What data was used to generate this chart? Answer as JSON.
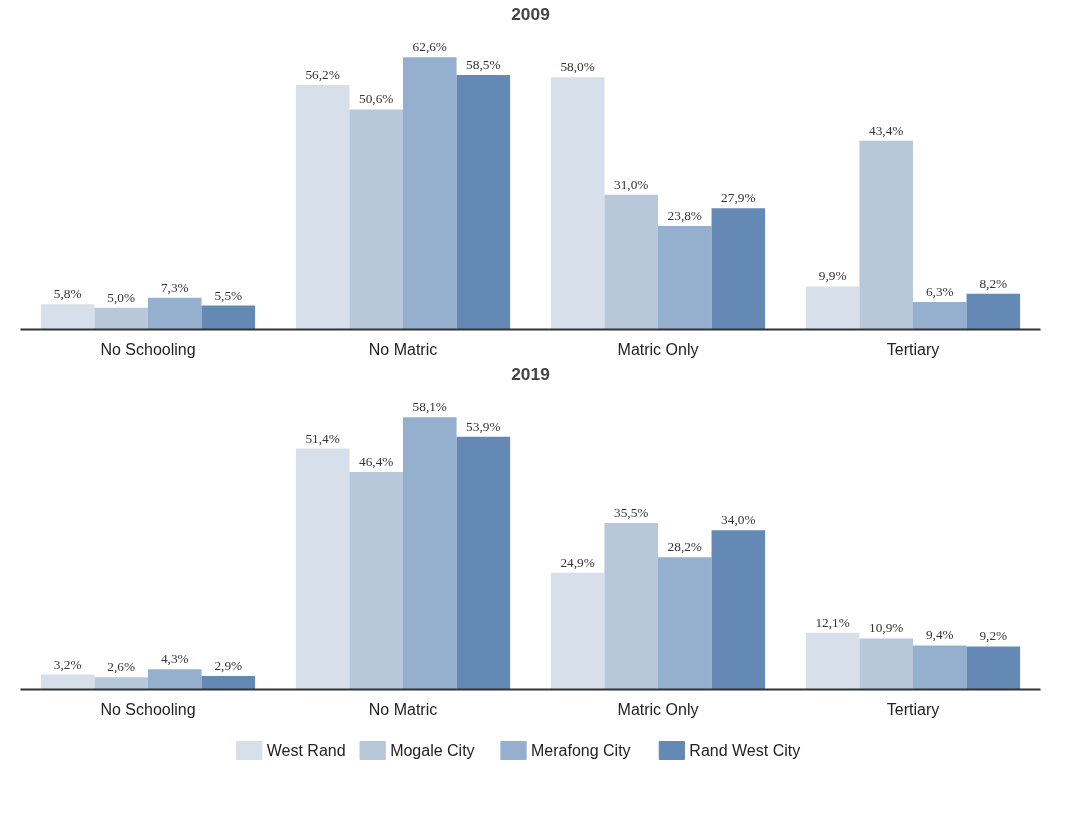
{
  "chart_data": [
    {
      "type": "bar",
      "title": "2009",
      "categories": [
        "No Schooling",
        "No Matric",
        "Matric Only",
        "Tertiary"
      ],
      "legend": false,
      "grid": false,
      "tick_labels": "x",
      "series": [
        {
          "color": "#d6dfea",
          "values": [
            5.8,
            56.2,
            58.0,
            9.9
          ],
          "value_labels": [
            "5,8%",
            "56,2%",
            "58,0%",
            "9,9%"
          ]
        },
        {
          "color": "#b7c8da",
          "values": [
            5.0,
            50.6,
            31.0,
            43.4
          ],
          "value_labels": [
            "5,0%",
            "50,6%",
            "31,0%",
            "43,4%"
          ]
        },
        {
          "color": "#95afcf",
          "values": [
            7.3,
            62.6,
            23.8,
            6.3
          ],
          "value_labels": [
            "7,3%",
            "62,6%",
            "23,8%",
            "6,3%"
          ]
        },
        {
          "color": "#6489b5",
          "values": [
            5.5,
            58.5,
            27.9,
            8.2
          ],
          "value_labels": [
            "5,5%",
            "58,5%",
            "27,9%",
            "8,2%"
          ]
        }
      ]
    },
    {
      "type": "bar",
      "title": "2019",
      "categories": [
        "No Schooling",
        "No Matric",
        "Matric Only",
        "Tertiary"
      ],
      "legend": "bottom",
      "grid": false,
      "tick_labels": "x",
      "series": [
        {
          "name": "West Rand",
          "color": "#d6dfea",
          "values": [
            3.2,
            51.4,
            24.9,
            12.1
          ],
          "value_labels": [
            "3,2%",
            "51,4%",
            "24,9%",
            "12,1%"
          ]
        },
        {
          "name": "Mogale City",
          "color": "#b7c8da",
          "values": [
            2.6,
            46.4,
            35.5,
            10.9
          ],
          "value_labels": [
            "2,6%",
            "46,4%",
            "35,5%",
            "10,9%"
          ]
        },
        {
          "name": "Merafong City",
          "color": "#95afcf",
          "values": [
            4.3,
            58.1,
            28.2,
            9.4
          ],
          "value_labels": [
            "4,3%",
            "58,1%",
            "28,2%",
            "9,4%"
          ]
        },
        {
          "name": "Rand West City",
          "color": "#6489b5",
          "values": [
            2.9,
            53.9,
            34.0,
            9.2
          ],
          "value_labels": [
            "2,9%",
            "53,9%",
            "34,0%",
            "9,2%"
          ]
        }
      ]
    }
  ]
}
